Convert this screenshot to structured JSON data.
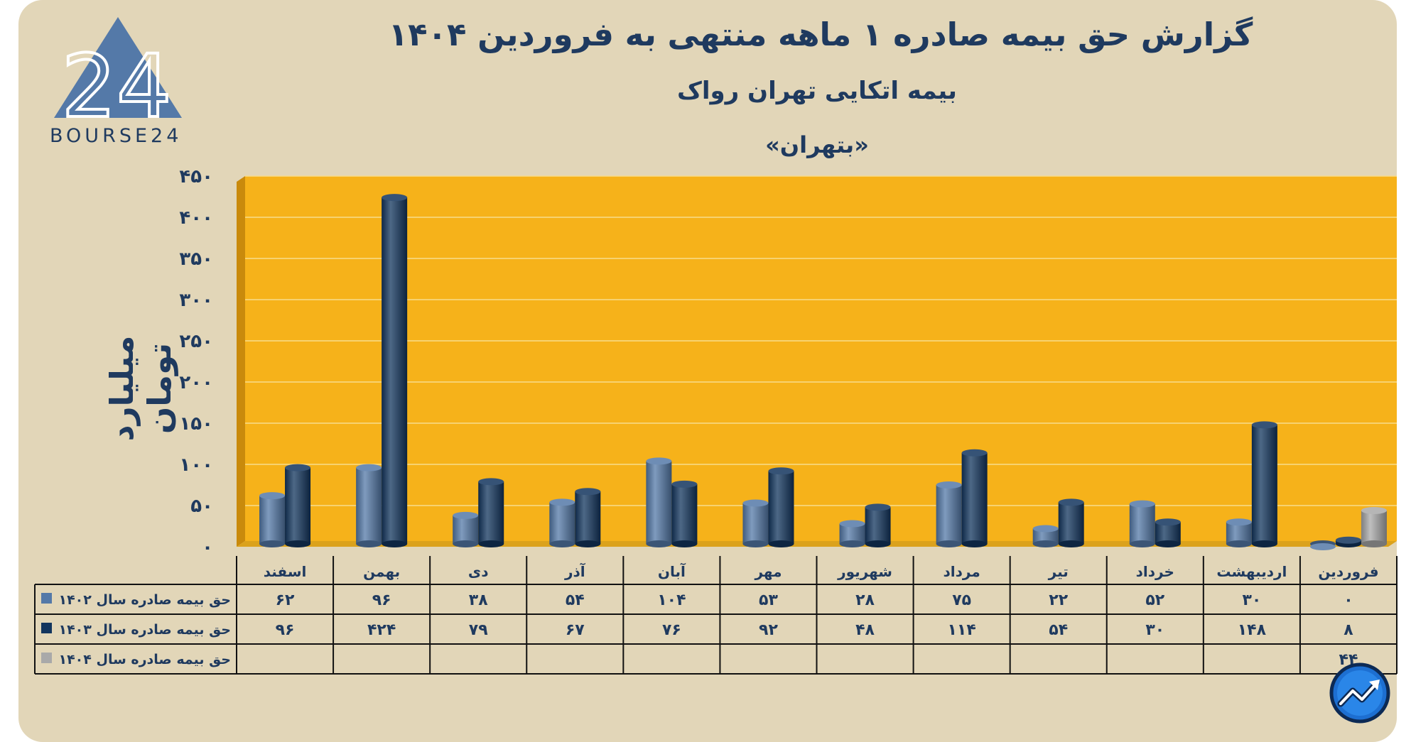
{
  "header": {
    "title": "گزارش  حق بیمه صادره ۱ ماهه منتهی به فروردین ۱۴۰۴",
    "subtitle": "بیمه اتکایی تهران رواک",
    "ticker": "«بتهران»"
  },
  "logo": {
    "text": "BOURSE24",
    "mark": "24"
  },
  "watermark": {
    "icon": "trend-up-circle-icon"
  },
  "colors": {
    "plot_bg": "#f6b21a",
    "series_1402": "#5479a8",
    "series_1403": "#12355e",
    "series_1404": "#a9a9a9",
    "text": "#1f3a5f"
  },
  "chart_data": {
    "type": "bar",
    "title": "گزارش  حق بیمه صادره ۱ ماهه منتهی به فروردین ۱۴۰۴",
    "ylabel": "میلیارد تومان",
    "ylim": [
      0,
      450
    ],
    "yticks": [
      0,
      50,
      100,
      150,
      200,
      250,
      300,
      350,
      400,
      450
    ],
    "ytick_labels": [
      "۰",
      "۵۰",
      "۱۰۰",
      "۱۵۰",
      "۲۰۰",
      "۲۵۰",
      "۳۰۰",
      "۳۵۰",
      "۴۰۰",
      "۴۵۰"
    ],
    "grid": true,
    "legend": "data-table-left",
    "categories": [
      "فروردین",
      "اردیبهشت",
      "خرداد",
      "تیر",
      "مرداد",
      "شهریور",
      "مهر",
      "آبان",
      "آذر",
      "دی",
      "بهمن",
      "اسفند"
    ],
    "series": [
      {
        "name": "حق بیمه صادره سال ۱۴۰۲",
        "values": [
          0,
          30,
          52,
          22,
          75,
          28,
          53,
          104,
          54,
          38,
          96,
          62
        ],
        "labels": [
          "۰",
          "۳۰",
          "۵۲",
          "۲۲",
          "۷۵",
          "۲۸",
          "۵۳",
          "۱۰۴",
          "۵۴",
          "۳۸",
          "۹۶",
          "۶۲"
        ]
      },
      {
        "name": "حق بیمه صادره سال ۱۴۰۳",
        "values": [
          8,
          148,
          30,
          54,
          114,
          48,
          92,
          76,
          67,
          79,
          424,
          96
        ],
        "labels": [
          "۸",
          "۱۴۸",
          "۳۰",
          "۵۴",
          "۱۱۴",
          "۴۸",
          "۹۲",
          "۷۶",
          "۶۷",
          "۷۹",
          "۴۲۴",
          "۹۶"
        ]
      },
      {
        "name": "حق بیمه صادره سال ۱۴۰۴",
        "values": [
          44,
          null,
          null,
          null,
          null,
          null,
          null,
          null,
          null,
          null,
          null,
          null
        ],
        "labels": [
          "۴۴",
          "",
          "",
          "",
          "",
          "",
          "",
          "",
          "",
          "",
          "",
          ""
        ]
      }
    ]
  }
}
